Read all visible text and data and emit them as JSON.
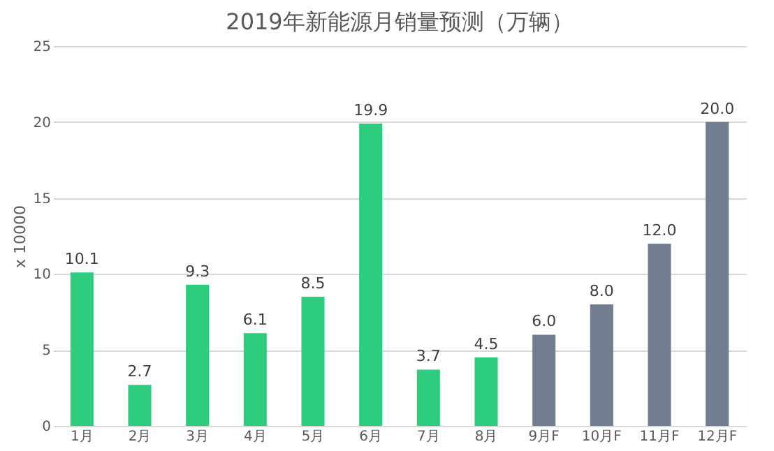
{
  "chart_data": {
    "type": "bar",
    "title": "2019年新能源月销量预测（万辆）",
    "ylabel": "x 10000",
    "categories": [
      "1月",
      "2月",
      "3月",
      "4月",
      "5月",
      "6月",
      "7月",
      "8月",
      "9月F",
      "10月F",
      "11月F",
      "12月F"
    ],
    "values": [
      10.1,
      2.7,
      9.3,
      6.1,
      8.5,
      19.9,
      3.7,
      4.5,
      6.0,
      8.0,
      12.0,
      20.0
    ],
    "value_labels": [
      "10.1",
      "2.7",
      "9.3",
      "6.1",
      "8.5",
      "19.9",
      "3.7",
      "4.5",
      "6.0",
      "8.0",
      "12.0",
      "20.0"
    ],
    "colors": [
      "#2ecc7e",
      "#2ecc7e",
      "#2ecc7e",
      "#2ecc7e",
      "#2ecc7e",
      "#2ecc7e",
      "#2ecc7e",
      "#2ecc7e",
      "#717e8f",
      "#717e8f",
      "#717e8f",
      "#717e8f"
    ],
    "ylim": [
      0,
      25
    ],
    "yticks": [
      0,
      5,
      10,
      15,
      20,
      25
    ],
    "grid": "y"
  }
}
